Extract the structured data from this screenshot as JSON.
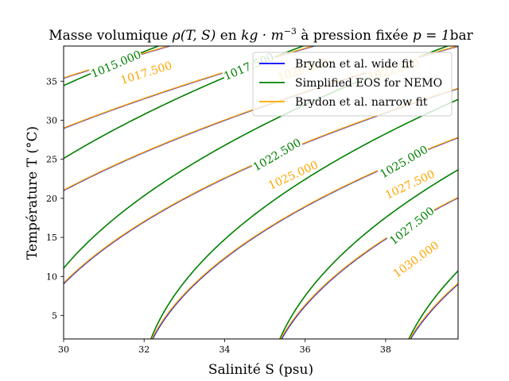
{
  "chart_data": {
    "type": "contour",
    "title": "Masse volumique ρ(T, S) en kg · m⁻³ à pression fixée p = 1bar",
    "xlabel": "Salinité S (psu)",
    "ylabel": "Température T (°C)",
    "xlim": [
      30,
      39.8
    ],
    "ylim": [
      2,
      39.5
    ],
    "x_ticks": [
      30,
      32,
      34,
      36,
      38
    ],
    "y_ticks": [
      5,
      10,
      15,
      20,
      25,
      30,
      35
    ],
    "grid": false,
    "legend_position": "top-right",
    "series": [
      {
        "name": "Brydon et al. wide fit",
        "color": "#0000ff"
      },
      {
        "name": "Simplified EOS for NEMO",
        "color": "#008000"
      },
      {
        "name": "Brydon et al. narrow fit",
        "color": "#ffa500"
      }
    ],
    "contour_levels": [
      1015.0,
      1017.5,
      1020.0,
      1022.5,
      1025.0,
      1027.5,
      1030.0
    ],
    "contour_labels": [
      {
        "series": "Simplified EOS for NEMO",
        "text": "1015.000",
        "level": 1015.0,
        "S": 31.3,
        "T": 37.2
      },
      {
        "series": "Brydon et al. narrow fit",
        "text": "1017.500",
        "level": 1017.5,
        "S": 32.05,
        "T": 36.1
      },
      {
        "series": "Simplified EOS for NEMO",
        "text": "1017.500",
        "level": 1017.5,
        "S": 34.6,
        "T": 36.9
      },
      {
        "series": "Brydon et al. narrow fit",
        "text": "1020.000",
        "level": 1020.0,
        "S": 35.95,
        "T": 36.5
      },
      {
        "series": "Brydon et al. narrow fit",
        "text": "1022.500",
        "level": 1022.5,
        "S": 38.2,
        "T": 36.5
      },
      {
        "series": "Simplified EOS for NEMO",
        "text": "1022.500",
        "level": 1022.5,
        "S": 35.3,
        "T": 25.6
      },
      {
        "series": "Brydon et al. narrow fit",
        "text": "1025.000",
        "level": 1025.0,
        "S": 35.7,
        "T": 23.0
      },
      {
        "series": "Simplified EOS for NEMO",
        "text": "1025.000",
        "level": 1025.0,
        "S": 38.45,
        "T": 24.7
      },
      {
        "series": "Brydon et al. narrow fit",
        "text": "1027.500",
        "level": 1027.5,
        "S": 38.6,
        "T": 21.8
      },
      {
        "series": "Simplified EOS for NEMO",
        "text": "1027.500",
        "level": 1027.5,
        "S": 38.65,
        "T": 16.5
      },
      {
        "series": "Brydon et al. narrow fit",
        "text": "1030.000",
        "level": 1030.0,
        "S": 38.75,
        "T": 12.2
      }
    ]
  }
}
